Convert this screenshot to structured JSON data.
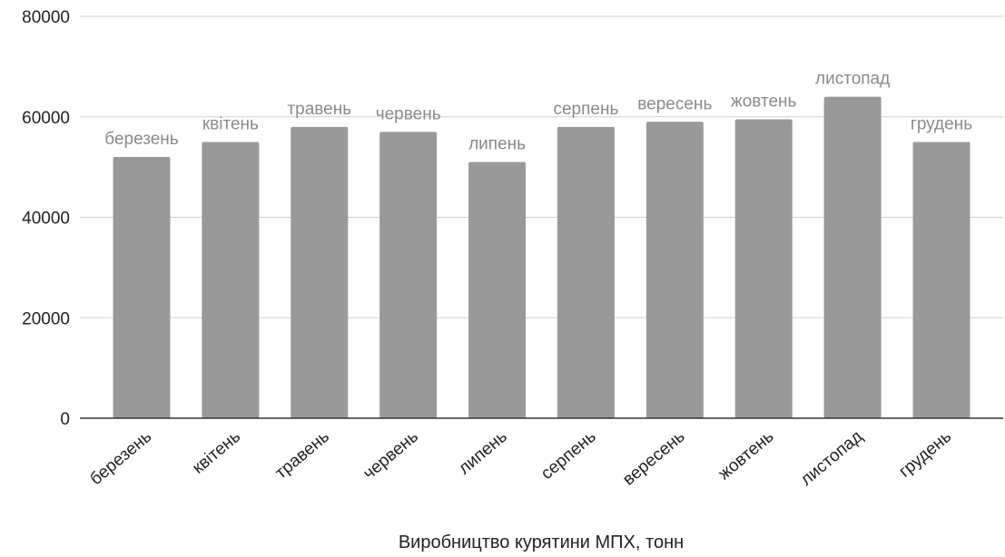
{
  "chart_data": {
    "type": "bar",
    "categories": [
      "березень",
      "квітень",
      "травень",
      "червень",
      "липень",
      "серпень",
      "вересень",
      "жовтень",
      "листопад",
      "грудень"
    ],
    "values": [
      52000,
      55000,
      58000,
      57000,
      51000,
      58000,
      59000,
      59500,
      64000,
      55000
    ],
    "data_labels": [
      "березень",
      "квітень",
      "травень",
      "червень",
      "липень",
      "серпень",
      "вересень",
      "жовтень",
      "листопад",
      "грудень"
    ],
    "xlabel": "Виробництво курятини МПХ, тонн",
    "ylabel": "",
    "ylim": [
      0,
      80000
    ],
    "yticks": [
      "0",
      "20000",
      "40000",
      "60000",
      "80000"
    ],
    "grid": true,
    "legend": "none",
    "colors": {
      "bar": "#999999",
      "data_label": "#8a8a8a",
      "grid": "#d0d0d0",
      "text": "#222222"
    }
  }
}
